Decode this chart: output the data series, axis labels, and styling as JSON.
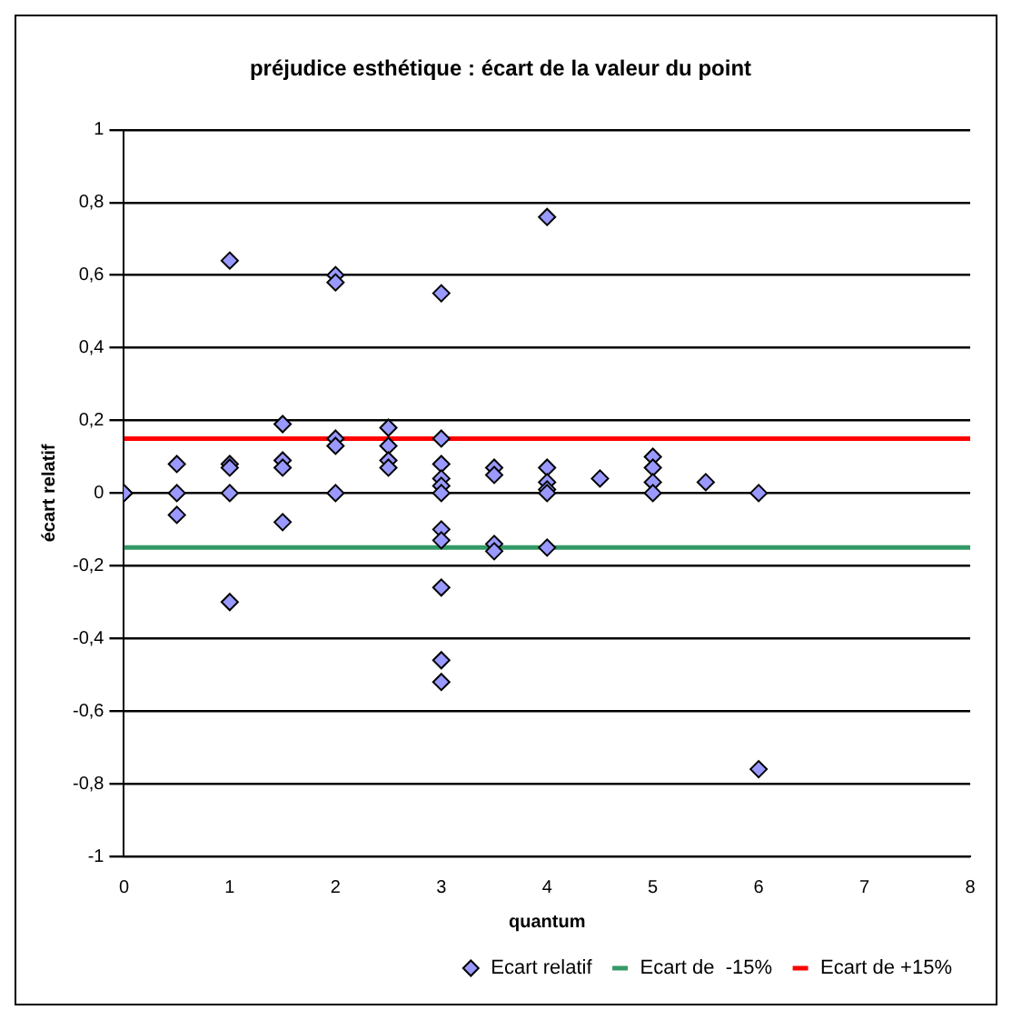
{
  "chart_data": {
    "type": "scatter",
    "title": "préjudice esthétique : écart de la valeur du point",
    "xlabel": "quantum",
    "ylabel": "écart relatif",
    "xlim": [
      0,
      8
    ],
    "xticks": [
      0,
      1,
      2,
      3,
      4,
      5,
      6,
      7,
      8
    ],
    "ylim": [
      -1,
      1
    ],
    "yticks": [
      {
        "value": -1,
        "label": "-1"
      },
      {
        "value": -0.8,
        "label": "-0,8"
      },
      {
        "value": -0.6,
        "label": "-0,6"
      },
      {
        "value": -0.4,
        "label": "-0,4"
      },
      {
        "value": -0.2,
        "label": "-0,2"
      },
      {
        "value": 0,
        "label": "0"
      },
      {
        "value": 0.2,
        "label": "0,2"
      },
      {
        "value": 0.4,
        "label": "0,4"
      },
      {
        "value": 0.6,
        "label": "0,6"
      },
      {
        "value": 0.8,
        "label": "0,8"
      },
      {
        "value": 1,
        "label": "1"
      }
    ],
    "grid": "y",
    "legend": "bottom right",
    "series": [
      {
        "name": "Ecart relatif",
        "color": "#9999ff",
        "marker": "diamond",
        "x": [
          0,
          0,
          0.5,
          0.5,
          0.5,
          1,
          1,
          1,
          1,
          1,
          1.5,
          1.5,
          1.5,
          1.5,
          2,
          2,
          2,
          2,
          2,
          2.5,
          2.5,
          2.5,
          2.5,
          3,
          3,
          3,
          3,
          3,
          3,
          3,
          3,
          3,
          3,
          3,
          3.5,
          3.5,
          3.5,
          3.5,
          4,
          4,
          4,
          4,
          4,
          4,
          4.5,
          5,
          5,
          5,
          5,
          5.5,
          6,
          6
        ],
        "values": [
          0,
          0,
          0.08,
          0,
          -0.06,
          0.64,
          0.08,
          0.07,
          0,
          -0.3,
          0.19,
          0.09,
          0.07,
          -0.08,
          0.6,
          0.58,
          0.15,
          0.13,
          0,
          0.18,
          0.13,
          0.09,
          0.07,
          0.55,
          0.15,
          0.08,
          0.04,
          0.02,
          0,
          -0.1,
          -0.13,
          -0.26,
          -0.46,
          -0.52,
          0.07,
          0.05,
          -0.14,
          -0.16,
          0.76,
          0.07,
          0.03,
          0.01,
          0,
          -0.15,
          0.04,
          0.1,
          0.07,
          0.03,
          0,
          0.03,
          0,
          -0.76
        ]
      },
      {
        "name": "Ecart de  -15%",
        "type": "line",
        "color": "#339966",
        "marker": "none",
        "x": [
          0,
          8
        ],
        "values": [
          -0.15,
          -0.15
        ]
      },
      {
        "name": "Ecart de +15%",
        "type": "line",
        "color": "#ff0000",
        "marker": "none",
        "x": [
          0,
          8
        ],
        "values": [
          0.15,
          0.15
        ]
      }
    ]
  }
}
